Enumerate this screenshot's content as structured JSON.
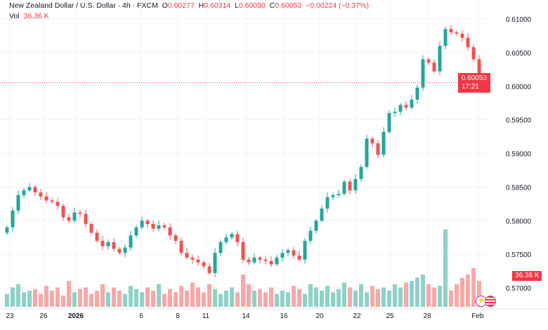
{
  "header": {
    "symbol": "New Zealand Dollar / U.S. Dollar · 4h · FXCM",
    "o_label": "O",
    "o": "0.60277",
    "h_label": "H",
    "h": "0.60314",
    "l_label": "L",
    "l": "0.60030",
    "c_label": "C",
    "c": "0.60053",
    "change": "−0.00224 (−0.37%)"
  },
  "volume": {
    "label": "Vol",
    "value": "36.36 K",
    "tag": "36.36 K"
  },
  "price_tag": {
    "price": "0.60053",
    "countdown": "17:21"
  },
  "colors": {
    "up": "#26a69a",
    "down": "#ef5350",
    "vol_up": "#8fd1c9",
    "vol_down": "#f7a9a7"
  },
  "chart_data": {
    "type": "candlestick",
    "y_ticks": [
      "0.61000",
      "0.60500",
      "0.60000",
      "0.59500",
      "0.59000",
      "0.58500",
      "0.58000",
      "0.57500",
      "0.57000"
    ],
    "ylim": [
      0.57,
      0.61
    ],
    "x_ticks": [
      "23",
      "26",
      "2026",
      "6",
      "8",
      "11",
      "14",
      "16",
      "20",
      "22",
      "25",
      "28",
      "Feb"
    ],
    "closes": [
      0.579,
      0.5815,
      0.5838,
      0.5845,
      0.585,
      0.5842,
      0.5836,
      0.583,
      0.5828,
      0.5822,
      0.5805,
      0.58,
      0.5812,
      0.581,
      0.5795,
      0.5782,
      0.577,
      0.5762,
      0.5768,
      0.5758,
      0.5752,
      0.576,
      0.5778,
      0.579,
      0.58,
      0.5795,
      0.5788,
      0.5793,
      0.579,
      0.5778,
      0.577,
      0.5752,
      0.5745,
      0.5742,
      0.5738,
      0.5732,
      0.5722,
      0.5752,
      0.5768,
      0.5775,
      0.578,
      0.5768,
      0.5742,
      0.5738,
      0.5745,
      0.5742,
      0.574,
      0.5735,
      0.5745,
      0.5752,
      0.5756,
      0.5748,
      0.5742,
      0.577,
      0.5785,
      0.58,
      0.5818,
      0.5835,
      0.5838,
      0.584,
      0.5858,
      0.5845,
      0.5862,
      0.588,
      0.5922,
      0.5915,
      0.5898,
      0.5932,
      0.596,
      0.5962,
      0.5972,
      0.5968,
      0.598,
      0.5998,
      0.604,
      0.6035,
      0.6022,
      0.606,
      0.6085,
      0.608,
      0.6078,
      0.6072,
      0.6058,
      0.604,
      0.6005
    ],
    "volumes": [
      8,
      12,
      14,
      9,
      10,
      11,
      8,
      13,
      10,
      12,
      7,
      16,
      9,
      11,
      12,
      8,
      10,
      14,
      9,
      12,
      10,
      8,
      13,
      11,
      9,
      12,
      10,
      14,
      8,
      11,
      9,
      13,
      10,
      15,
      12,
      9,
      14,
      11,
      8,
      10,
      12,
      9,
      20,
      14,
      10,
      11,
      9,
      12,
      8,
      10,
      9,
      13,
      11,
      8,
      14,
      12,
      10,
      13,
      9,
      11,
      15,
      12,
      10,
      14,
      9,
      13,
      11,
      12,
      10,
      14,
      12,
      15,
      16,
      18,
      20,
      14,
      12,
      13,
      48,
      10,
      14,
      18,
      20,
      24,
      16
    ]
  }
}
